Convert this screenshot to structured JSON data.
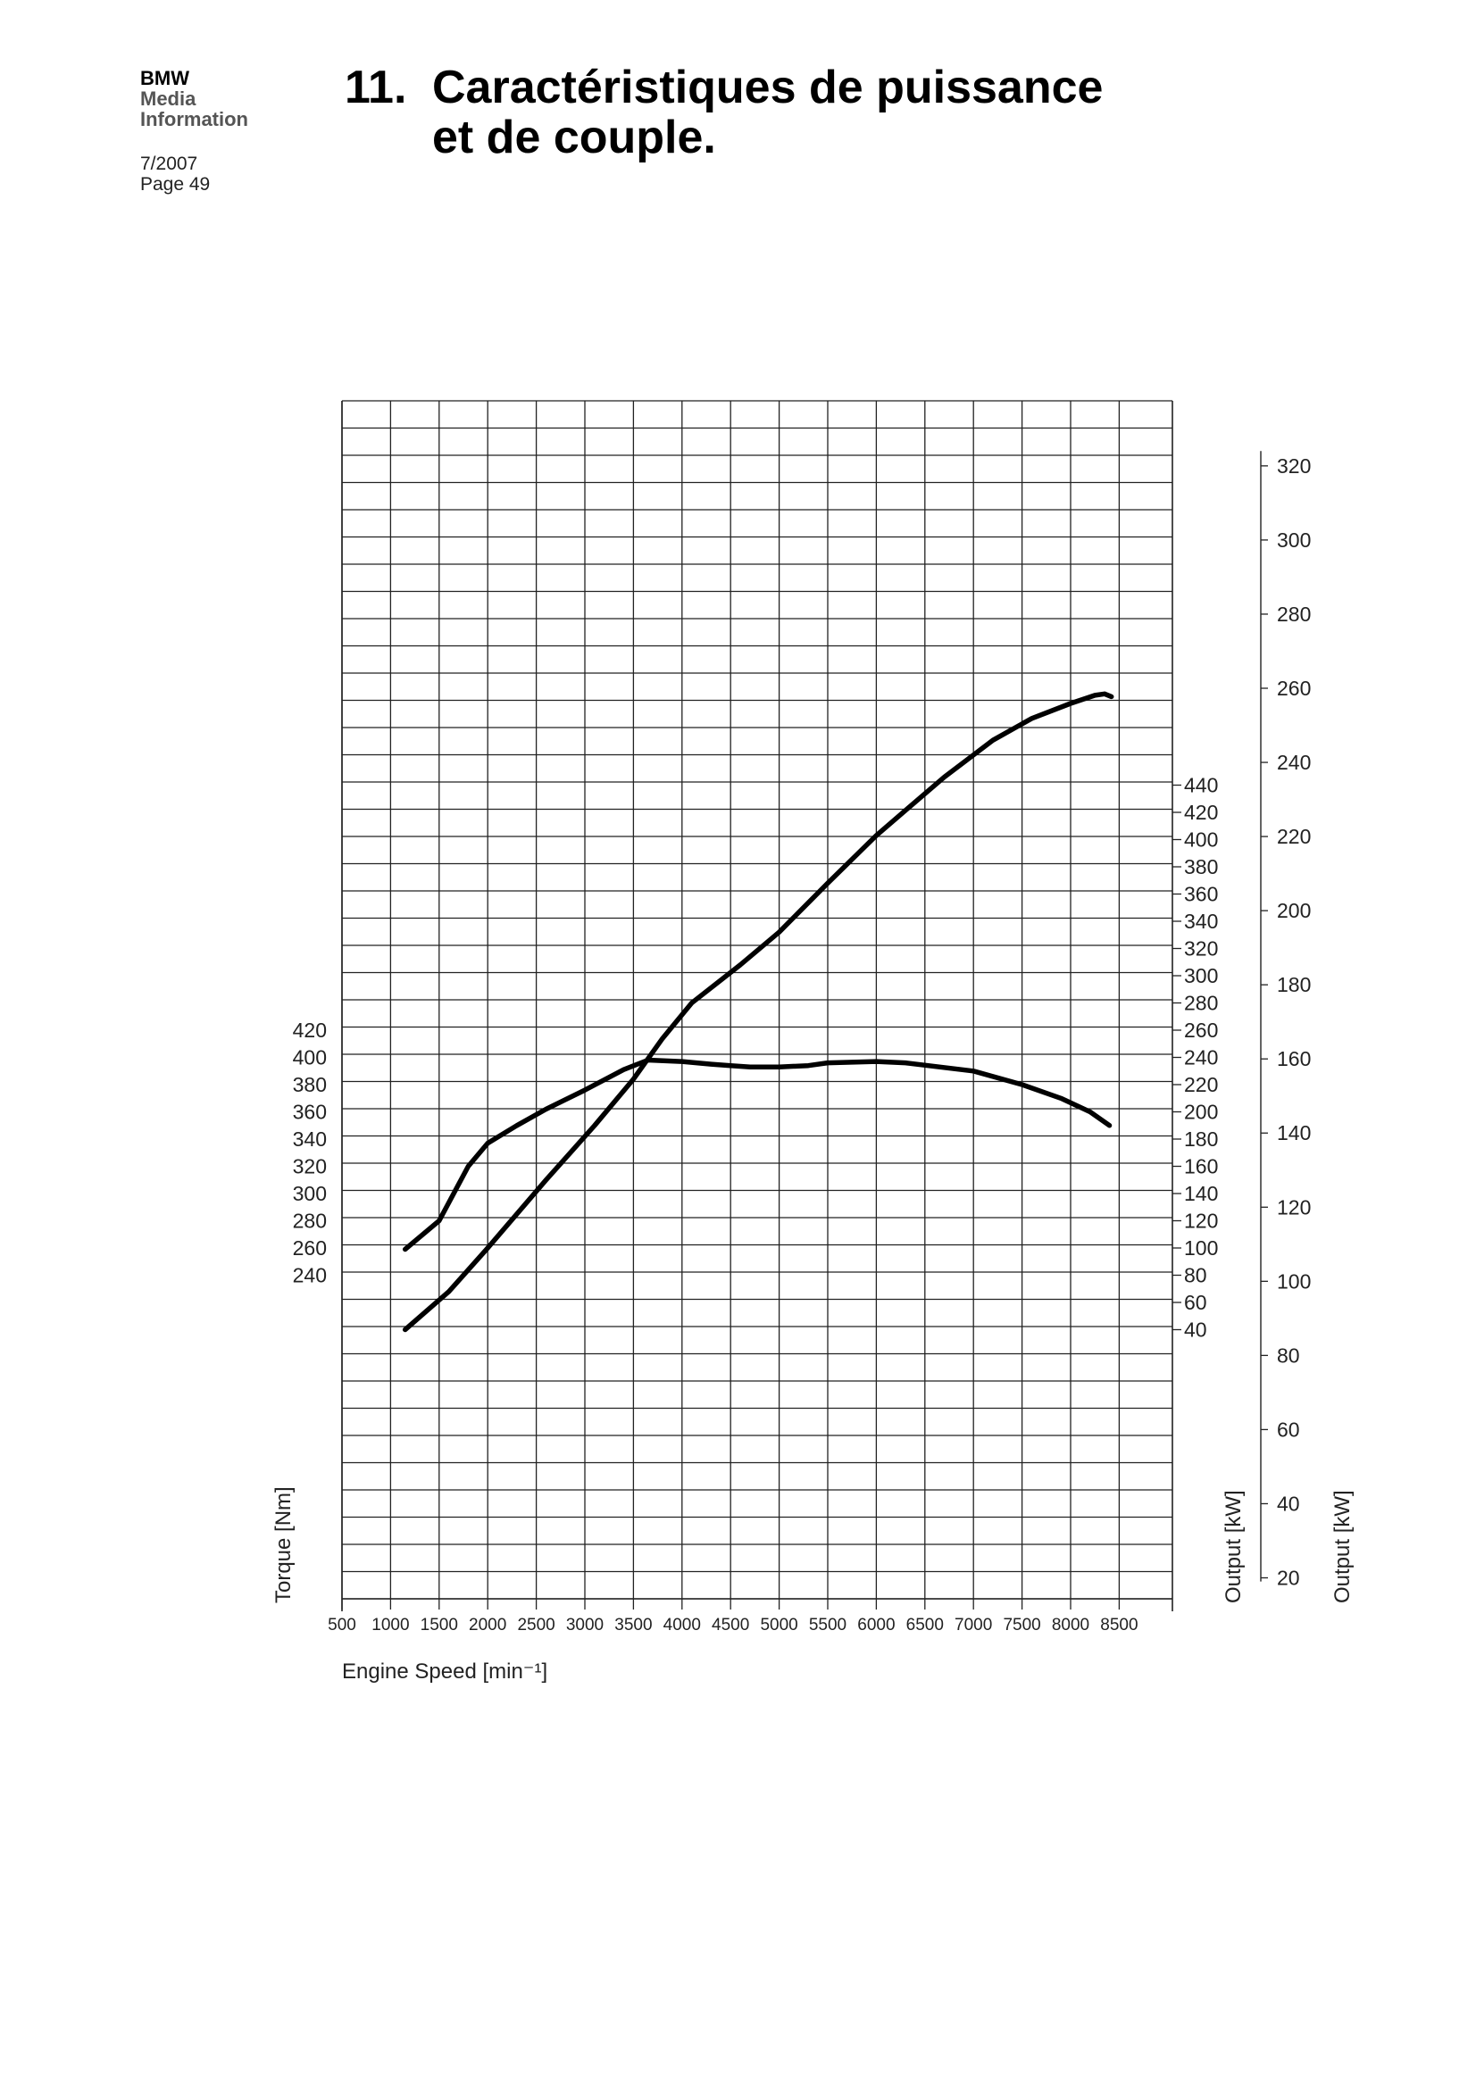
{
  "header": {
    "brand_line1": "BMW",
    "brand_line2": "Media",
    "brand_line3": "Information",
    "date": "7/2007",
    "page": "Page 49",
    "section_number": "11.",
    "title_line1": "Caractéristiques de puissance",
    "title_line2": "et de couple."
  },
  "chart_data": {
    "type": "line",
    "title": "",
    "xlabel": "Engine Speed [min⁻¹]",
    "x_ticks": [
      500,
      1000,
      1500,
      2000,
      2500,
      3000,
      3500,
      4000,
      4500,
      5000,
      5500,
      6000,
      6500,
      7000,
      7500,
      8000,
      8500
    ],
    "xlim": [
      500,
      9000
    ],
    "grid": true,
    "axes": {
      "torque": {
        "label": "Torque [Nm]",
        "ticks": [
          240,
          260,
          280,
          300,
          320,
          340,
          360,
          380,
          400,
          420
        ]
      },
      "output_mid": {
        "label": "Output [kW]",
        "ticks": [
          40,
          60,
          80,
          100,
          120,
          140,
          160,
          180,
          200,
          220,
          240,
          260,
          280,
          300,
          320,
          340,
          360,
          380,
          400,
          420,
          440
        ]
      },
      "output_right": {
        "label": "Output [kW]",
        "ticks": [
          20,
          40,
          60,
          80,
          100,
          120,
          140,
          160,
          180,
          200,
          220,
          240,
          260,
          280,
          300,
          320
        ]
      }
    },
    "series": [
      {
        "axis": "torque",
        "x": [
          1150,
          1500,
          1800,
          2000,
          2300,
          2600,
          3000,
          3400,
          3650,
          4000,
          4300,
          4500,
          4700,
          5000,
          5300,
          5500,
          6000,
          6300,
          7000,
          7500,
          7900,
          8200,
          8400
        ],
        "y": [
          259,
          280,
          320,
          337,
          350,
          362,
          376,
          391,
          398,
          397,
          395,
          394,
          393,
          393,
          394,
          396,
          397,
          396,
          390,
          380,
          370,
          360,
          350
        ]
      },
      {
        "axis": "output_mid",
        "x": [
          1150,
          1600,
          2000,
          2600,
          3100,
          3500,
          3800,
          4100,
          4600,
          5000,
          5500,
          6000,
          6700,
          7200,
          7600,
          8000,
          8250,
          8350,
          8420
        ],
        "y": [
          40,
          68,
          100,
          150,
          190,
          224,
          254,
          280,
          308,
          332,
          368,
          403,
          446,
          473,
          489,
          500,
          506,
          507,
          505
        ]
      }
    ]
  }
}
